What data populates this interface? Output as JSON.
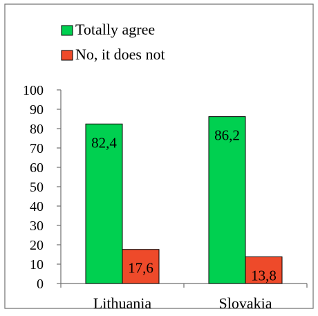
{
  "chart_data": {
    "type": "bar",
    "categories": [
      "Lithuania",
      "Slovakia"
    ],
    "series": [
      {
        "name": "Totally agree",
        "values": [
          82.4,
          86.2
        ],
        "labels": [
          "82,4",
          "86,2"
        ],
        "color": "#00d050"
      },
      {
        "name": "No, it does not",
        "values": [
          17.6,
          13.8
        ],
        "labels": [
          "17,6",
          "13,8"
        ],
        "color": "#ee4a2a"
      }
    ],
    "y_ticks": [
      "0",
      "10",
      "20",
      "30",
      "40",
      "50",
      "60",
      "70",
      "80",
      "90",
      "100"
    ],
    "ylim": [
      0,
      100
    ],
    "grid": false,
    "legend_position": "top-left",
    "title": "",
    "xlabel": "",
    "ylabel": ""
  }
}
